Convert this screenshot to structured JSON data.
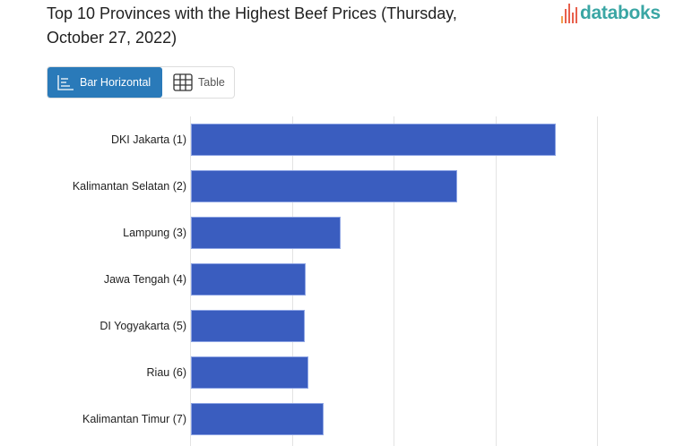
{
  "header": {
    "title": "Top 10 Provinces with the Highest Beef Prices (Thursday, October 27, 2022)",
    "logo_text": "databoks"
  },
  "toggle": {
    "bar_label": "Bar Horizontal",
    "table_label": "Table",
    "bar_icon": "bar-chart-icon",
    "table_icon": "table-grid-icon"
  },
  "colors": {
    "bar": "#3a5dbf",
    "active_button": "#2a7ab9",
    "logo": "#3aa6a4"
  },
  "chart_data": {
    "type": "bar",
    "orientation": "horizontal",
    "title": "Top 10 Provinces with the Highest Beef Prices (Thursday, October 27, 2022)",
    "categories": [
      "DKI Jakarta (1)",
      "Kalimantan Selatan (2)",
      "Lampung (3)",
      "Jawa Tengah (4)",
      "DI Yogyakarta (5)",
      "Riau (6)",
      "Kalimantan Timur (7)"
    ],
    "values": [
      3.59,
      2.62,
      1.47,
      1.13,
      1.12,
      1.15,
      1.3
    ],
    "value_units": "grid units (axis tick labels not visible)",
    "xlabel": "",
    "ylabel": "",
    "xlim": [
      0,
      4
    ],
    "grid": true,
    "legend": "none"
  }
}
